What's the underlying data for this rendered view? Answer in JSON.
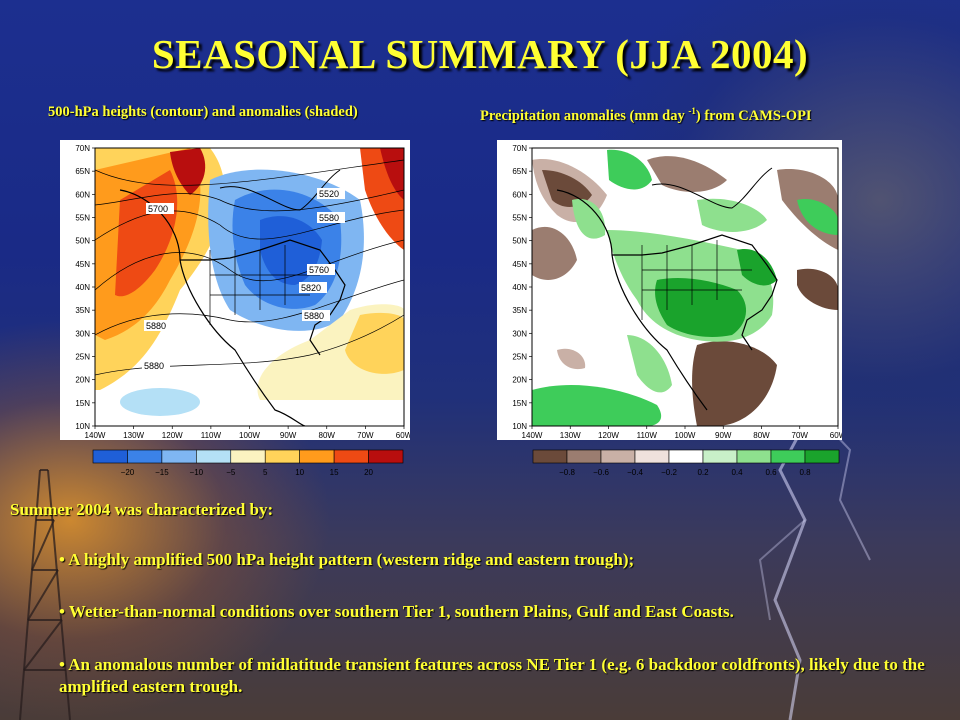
{
  "slide": {
    "title": "SEASONAL SUMMARY (JJA 2004)",
    "left_caption": "500-hPa heights (contour) and anomalies (shaded)",
    "right_caption_prefix": "Precipitation anomalies (mm day ",
    "right_caption_sup": "-1",
    "right_caption_suffix": ") from CAMS-OPI",
    "summary_heading": "Summer 2004  was characterized by:",
    "bullets": [
      "• A highly amplified 500 hPa height pattern (western ridge and eastern trough);",
      "• Wetter-than-normal conditions over southern Tier 1, southern Plains, Gulf and East Coasts.",
      "• An anomalous number of midlatitude transient features across NE Tier 1 (e.g. 6 backdoor coldfronts), likely due to the amplified eastern trough."
    ]
  },
  "maps": {
    "lat_labels": [
      "70N",
      "65N",
      "60N",
      "55N",
      "50N",
      "45N",
      "40N",
      "35N",
      "30N",
      "25N",
      "20N",
      "15N",
      "10N"
    ],
    "lon_labels": [
      "140W",
      "130W",
      "120W",
      "110W",
      "100W",
      "90W",
      "80W",
      "70W",
      "60W"
    ],
    "height_map": {
      "contours": [
        "5520",
        "5580",
        "5700",
        "5760",
        "5820",
        "5880",
        "5880",
        "5880"
      ]
    },
    "height_scale": {
      "labels": [
        "−20",
        "−15",
        "−10",
        "−5",
        "5",
        "10",
        "15",
        "20"
      ],
      "colors": [
        "#1f5fd8",
        "#3b82e8",
        "#7fb6f2",
        "#b4e0f6",
        "#fbf3c0",
        "#ffd35a",
        "#ff9b1c",
        "#ee4a14",
        "#b80e0e"
      ]
    },
    "precip_scale": {
      "labels": [
        "−0.8",
        "−0.6",
        "−0.4",
        "−0.2",
        "0.2",
        "0.4",
        "0.6",
        "0.8"
      ],
      "colors": [
        "#6b4a3a",
        "#9b7d70",
        "#c9b0a6",
        "#efe1dc",
        "#ffffff",
        "#c8f0c8",
        "#8ee08e",
        "#3ecc5a",
        "#1aa32c"
      ]
    }
  }
}
